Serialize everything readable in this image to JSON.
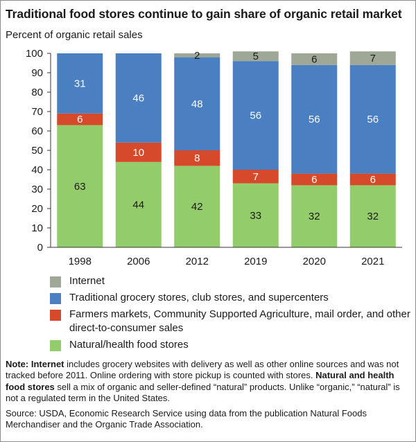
{
  "title": "Traditional food stores continue to gain share of organic retail market",
  "y_axis_caption": "Percent of organic retail sales",
  "colors": {
    "internet": "#9fa897",
    "traditional": "#4a7fc1",
    "farmers": "#d6492b",
    "natural": "#93cc6a",
    "axis": "#333333",
    "label_dark": "#1a1a1a",
    "label_light": "#ffffff"
  },
  "chart_data": {
    "type": "bar",
    "stacked": true,
    "categories": [
      "1998",
      "2006",
      "2012",
      "2019",
      "2020",
      "2021"
    ],
    "ylim": [
      0,
      100
    ],
    "yticks": [
      0,
      10,
      20,
      30,
      40,
      50,
      60,
      70,
      80,
      90,
      100
    ],
    "ylabel": "Percent of organic retail sales",
    "series": [
      {
        "key": "natural",
        "name": "Natural/health food stores",
        "values": [
          63,
          44,
          42,
          33,
          32,
          32
        ],
        "labels": [
          "63",
          "44",
          "42",
          "33",
          "32",
          "32"
        ]
      },
      {
        "key": "farmers",
        "name": "Farmers markets, Community Supported Agriculture, mail order, and other direct-to-consumer sales",
        "values": [
          6,
          10,
          8,
          7,
          6,
          6
        ],
        "labels": [
          "6",
          "10",
          "8",
          "7",
          "6",
          "6"
        ]
      },
      {
        "key": "traditional",
        "name": "Traditional grocery stores, club stores, and supercenters",
        "values": [
          31,
          46,
          48,
          56,
          56,
          56
        ],
        "labels": [
          "31",
          "46",
          "48",
          "56",
          "56",
          "56"
        ]
      },
      {
        "key": "internet",
        "name": "Internet",
        "values": [
          0,
          0,
          2,
          5,
          6,
          7
        ],
        "labels": [
          "",
          "",
          "2",
          "5",
          "6",
          "7"
        ]
      }
    ]
  },
  "legend": [
    {
      "key": "internet",
      "label": "Internet"
    },
    {
      "key": "traditional",
      "label": "Traditional grocery stores, club stores, and supercenters"
    },
    {
      "key": "farmers",
      "label": "Farmers markets, Community Supported Agriculture, mail order, and other direct-to-consumer sales"
    },
    {
      "key": "natural",
      "label": "Natural/health food stores"
    }
  ],
  "notes": {
    "note_prefix": "Note: ",
    "internet_term": "Internet",
    "internet_text": " includes grocery websites with delivery as well as other online sources and was not tracked before 2011. Online ordering with store pickup is counted with stores.",
    "natural_term": "Natural and health food stores",
    "natural_text": " sell a mix of organic and seller-defined “natural” products. Unlike “organic,” “natural” is not a regulated term in the United States.",
    "source": "Source: USDA, Economic Research Service using data from the publication Natural Foods Merchandiser and the Organic Trade Association."
  }
}
